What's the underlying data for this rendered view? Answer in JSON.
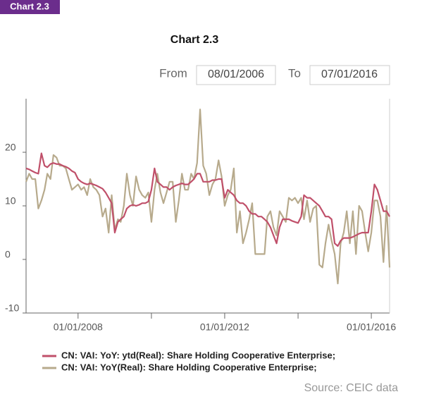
{
  "badge": "Chart 2.3",
  "controls": {
    "from_label": "From",
    "from": "08/01/2006",
    "to_label": "To",
    "to": "07/01/2016"
  },
  "chart_data": {
    "type": "line",
    "title": "Chart 2.3",
    "source": "Source: CEIC data",
    "xlim": [
      "08/01/2006",
      "07/01/2016"
    ],
    "xticks": [
      "01/01/2008",
      "01/01/2012",
      "01/01/2016"
    ],
    "xminor_ticks": [
      "01/01/2010",
      "01/01/2014"
    ],
    "ylim": [
      -10,
      30
    ],
    "yticks": [
      -10,
      0,
      10,
      20
    ],
    "grid": false,
    "x": [
      "08/01/2006",
      "09/01/2006",
      "10/01/2006",
      "11/01/2006",
      "12/01/2006",
      "01/01/2007",
      "02/01/2007",
      "03/01/2007",
      "04/01/2007",
      "05/01/2007",
      "06/01/2007",
      "07/01/2007",
      "08/01/2007",
      "09/01/2007",
      "10/01/2007",
      "11/01/2007",
      "12/01/2007",
      "01/01/2008",
      "02/01/2008",
      "03/01/2008",
      "04/01/2008",
      "05/01/2008",
      "06/01/2008",
      "07/01/2008",
      "08/01/2008",
      "09/01/2008",
      "10/01/2008",
      "11/01/2008",
      "12/01/2008",
      "01/01/2009",
      "02/01/2009",
      "03/01/2009",
      "04/01/2009",
      "05/01/2009",
      "06/01/2009",
      "07/01/2009",
      "08/01/2009",
      "09/01/2009",
      "10/01/2009",
      "11/01/2009",
      "12/01/2009",
      "01/01/2010",
      "02/01/2010",
      "03/01/2010",
      "04/01/2010",
      "05/01/2010",
      "06/01/2010",
      "07/01/2010",
      "08/01/2010",
      "09/01/2010",
      "10/01/2010",
      "11/01/2010",
      "12/01/2010",
      "01/01/2011",
      "02/01/2011",
      "03/01/2011",
      "04/01/2011",
      "05/01/2011",
      "06/01/2011",
      "07/01/2011",
      "08/01/2011",
      "09/01/2011",
      "10/01/2011",
      "11/01/2011",
      "12/01/2011",
      "01/01/2012",
      "02/01/2012",
      "03/01/2012",
      "04/01/2012",
      "05/01/2012",
      "06/01/2012",
      "07/01/2012",
      "08/01/2012",
      "09/01/2012",
      "10/01/2012",
      "11/01/2012",
      "12/01/2012",
      "01/01/2013",
      "02/01/2013",
      "03/01/2013",
      "04/01/2013",
      "05/01/2013",
      "06/01/2013",
      "07/01/2013",
      "08/01/2013",
      "09/01/2013",
      "10/01/2013",
      "11/01/2013",
      "12/01/2013",
      "01/01/2014",
      "02/01/2014",
      "03/01/2014",
      "04/01/2014",
      "05/01/2014",
      "06/01/2014",
      "07/01/2014",
      "08/01/2014",
      "09/01/2014",
      "10/01/2014",
      "11/01/2014",
      "12/01/2014",
      "01/01/2015",
      "02/01/2015",
      "03/01/2015",
      "04/01/2015",
      "05/01/2015",
      "06/01/2015",
      "07/01/2015",
      "08/01/2015",
      "09/01/2015",
      "10/01/2015",
      "11/01/2015",
      "12/01/2015",
      "01/01/2016",
      "02/01/2016",
      "03/01/2016",
      "04/01/2016",
      "05/01/2016",
      "06/01/2016",
      "07/01/2016"
    ],
    "series": [
      {
        "name": "CN: VAI: YoY: ytd(Real): Share Holding Cooperative Enterprise;",
        "color": "#c0506a",
        "values": [
          17,
          16.8,
          16.5,
          16.2,
          16,
          19.8,
          17.5,
          17.2,
          17.8,
          18,
          17.8,
          17.8,
          17.5,
          17.3,
          17,
          16.5,
          16.2,
          15,
          14.5,
          14.2,
          14,
          14.2,
          14,
          13.8,
          13.5,
          13.2,
          12.5,
          11.5,
          10.5,
          5,
          7,
          7.5,
          8,
          9.5,
          10,
          10.2,
          10,
          10.2,
          10.5,
          10.5,
          10.8,
          13,
          17,
          14.5,
          14,
          13.5,
          13.5,
          13,
          13.5,
          13.8,
          14,
          14.2,
          14,
          14,
          14.5,
          15,
          16,
          16,
          14.5,
          14.5,
          14.5,
          14.8,
          14.8,
          15,
          15,
          11.5,
          13,
          12.5,
          12,
          11,
          10.5,
          10.5,
          10,
          9,
          8.5,
          8.5,
          8,
          8,
          7.5,
          7,
          6,
          4.5,
          3,
          6,
          7.5,
          7.5,
          7.5,
          7.2,
          7,
          6.8,
          8,
          12,
          11.5,
          11.5,
          11,
          10.5,
          10,
          9,
          8,
          8,
          7.5,
          3,
          2.5,
          3.5,
          4,
          4,
          4,
          4.2,
          4.5,
          4.8,
          5,
          5,
          5,
          9,
          14,
          13,
          11,
          9,
          9,
          8
        ]
      },
      {
        "name": "CN: VAI: YoY(Real): Share Holding Cooperative Enterprise;",
        "color": "#b7aa8c",
        "values": [
          14.5,
          16,
          15,
          15,
          9.5,
          11,
          13,
          16,
          15,
          19.5,
          19,
          17.5,
          17.5,
          17,
          15,
          13,
          13.5,
          14,
          13,
          13.5,
          12,
          15,
          13.5,
          13,
          12,
          8,
          9.5,
          5,
          12,
          5.5,
          7.5,
          7,
          10,
          16,
          12,
          10,
          15.5,
          13,
          12,
          11.5,
          12.5,
          7,
          13,
          16,
          12.5,
          10.5,
          12.5,
          14.5,
          14.5,
          7,
          11,
          16,
          13,
          13,
          16,
          15,
          18,
          28,
          17.5,
          16,
          12,
          14,
          15,
          18.5,
          15.5,
          10,
          12,
          13,
          17,
          5,
          9,
          3,
          5,
          7.5,
          10.5,
          1,
          1,
          1,
          1,
          8,
          9,
          6,
          4.5,
          9,
          8,
          7,
          11.5,
          11,
          11.5,
          10.5,
          11.5,
          7.5,
          11,
          7,
          9.5,
          10,
          -1,
          -1.5,
          3,
          6.5,
          3.5,
          1,
          -4.5,
          3,
          5,
          9,
          3,
          9,
          1,
          10,
          9,
          5,
          1.5,
          5,
          11,
          11,
          8,
          -0.5,
          10,
          -1.5
        ]
      }
    ]
  }
}
